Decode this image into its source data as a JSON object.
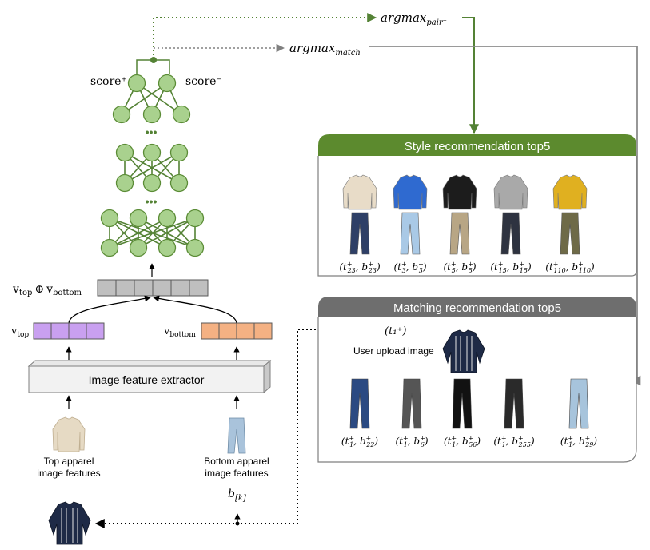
{
  "labels": {
    "score_plus": "score⁺",
    "score_minus": "score⁻",
    "ellipsis": "•••",
    "argmax_pair": "argmax",
    "argmax_pair_sub": "pair⁺",
    "argmax_match": "argmax",
    "argmax_match_sub": "match",
    "concat_v": "v",
    "concat_top_sub": "top",
    "concat_oplus": "⊕",
    "concat_bottom_sub": "bottom",
    "v_top": "v",
    "v_top_sub": "top",
    "v_bottom": "v",
    "v_bottom_sub": "bottom",
    "extractor": "Image feature extractor",
    "top_apparel_line1": "Top apparel",
    "top_apparel_line2": "image features",
    "bottom_apparel_line1": "Bottom apparel",
    "bottom_apparel_line2": "image features",
    "b_k": "b",
    "b_k_sub": "[k]"
  },
  "style_panel": {
    "title": "Style recommendation top5",
    "header_color": "#5c8a2e",
    "items": [
      {
        "t": "23",
        "b": "23",
        "top_color": "#e8dcc8",
        "bottom_color": "#2e3f66"
      },
      {
        "t": "3",
        "b": "3",
        "top_color": "#2f6ad0",
        "bottom_color": "#a9c9e6"
      },
      {
        "t": "5",
        "b": "5",
        "top_color": "#1c1c1c",
        "bottom_color": "#b8a685"
      },
      {
        "t": "15",
        "b": "15",
        "top_color": "#a9a9a9",
        "bottom_color": "#2e3340"
      },
      {
        "t": "110",
        "b": "110",
        "top_color": "#e0b020",
        "bottom_color": "#6e6a48"
      }
    ]
  },
  "match_panel": {
    "title": "Matching recommendation top5",
    "header_color": "#6e6e6e",
    "query": "(t₁⁺)",
    "upload_label": "User upload image",
    "items": [
      {
        "t": "1",
        "b": "22",
        "bottom_color": "#2b4a82"
      },
      {
        "t": "1",
        "b": "6",
        "bottom_color": "#555555"
      },
      {
        "t": "1",
        "b": "56",
        "bottom_color": "#121212"
      },
      {
        "t": "1",
        "b": "255",
        "bottom_color": "#2a2a2a"
      },
      {
        "t": "1",
        "b": "29",
        "bottom_color": "#a7c4dc"
      }
    ]
  },
  "colors": {
    "node_fill": "#a9d18e",
    "node_stroke": "#5b8c36",
    "green_line": "#548235",
    "v_top_fill": "#c9a0f0",
    "v_bottom_fill": "#f4b183",
    "concat_fill": "#bfbfbf"
  }
}
